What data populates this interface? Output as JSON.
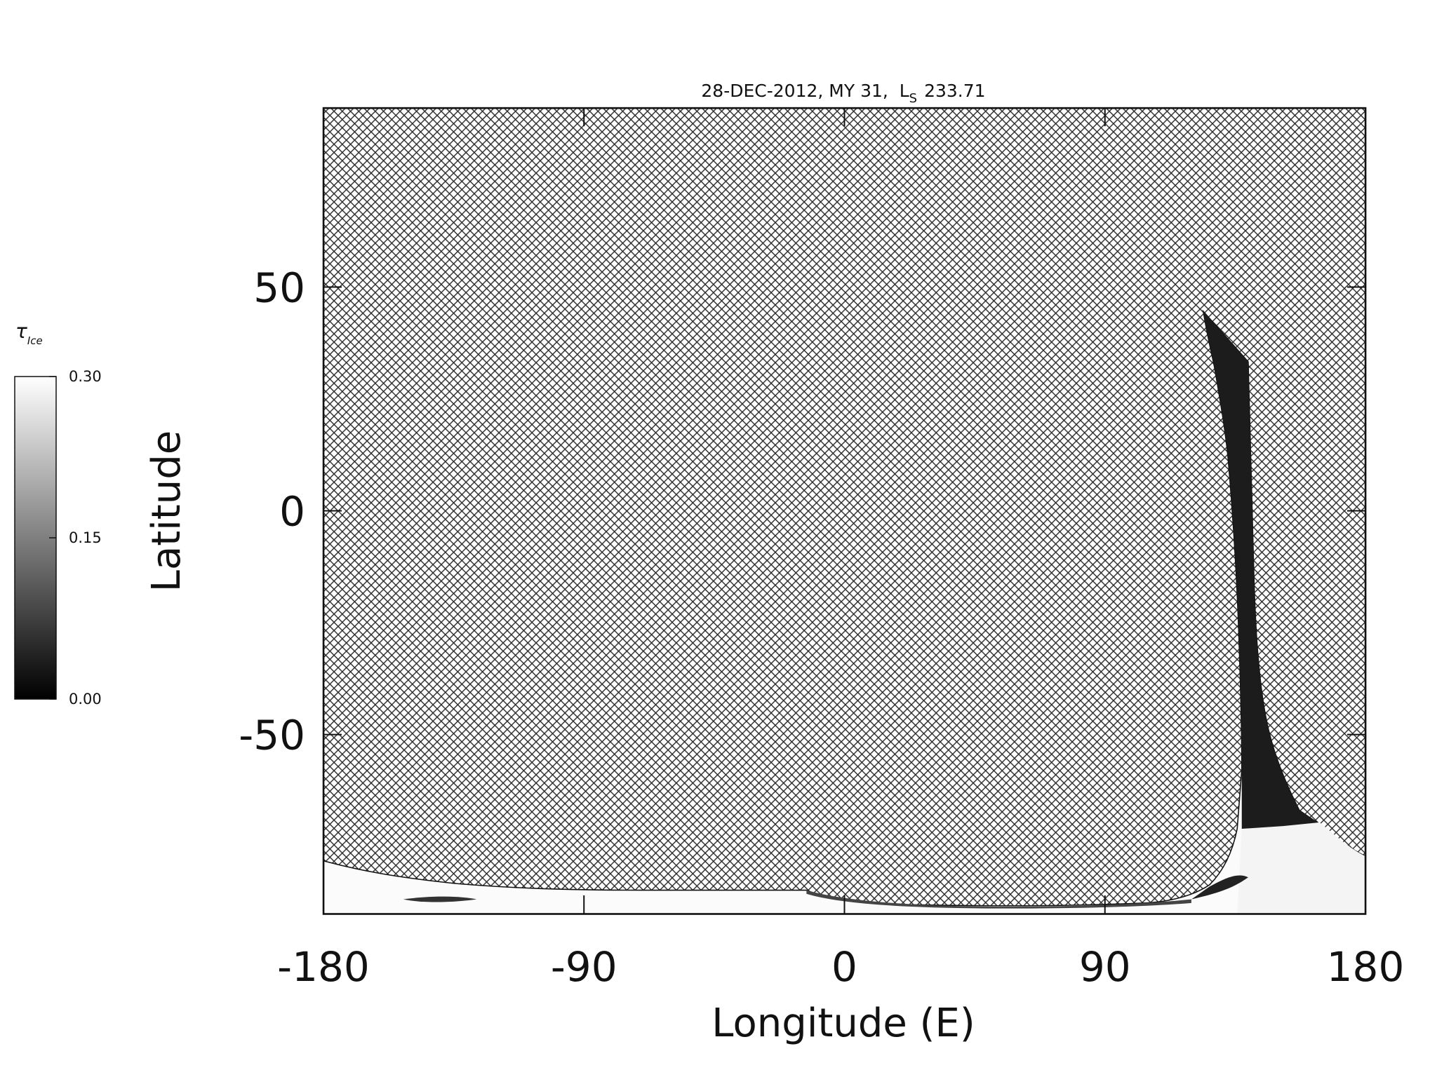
{
  "chart_data": {
    "type": "map",
    "title": {
      "text": "28-DEC-2012, MY 31,  L",
      "subscript": "S",
      "after": "233.71"
    },
    "xlabel": "Longitude (E)",
    "ylabel": "Latitude",
    "xlim": [
      -180,
      180
    ],
    "xticks": [
      -180,
      -90,
      0,
      90,
      180
    ],
    "ylim": [
      -90,
      90
    ],
    "yticks": [
      -50,
      0,
      50
    ],
    "colorbar": {
      "label": "τ",
      "label_subscript": "Ice",
      "clim": [
        0,
        0.3
      ],
      "colors": [
        "#000000",
        "#ffffff"
      ],
      "ticks": [
        {
          "value": 0,
          "label": "0.00"
        },
        {
          "value": 0.15,
          "label": "0.15"
        },
        {
          "value": 0.3,
          "label": "0.30"
        }
      ]
    }
  }
}
